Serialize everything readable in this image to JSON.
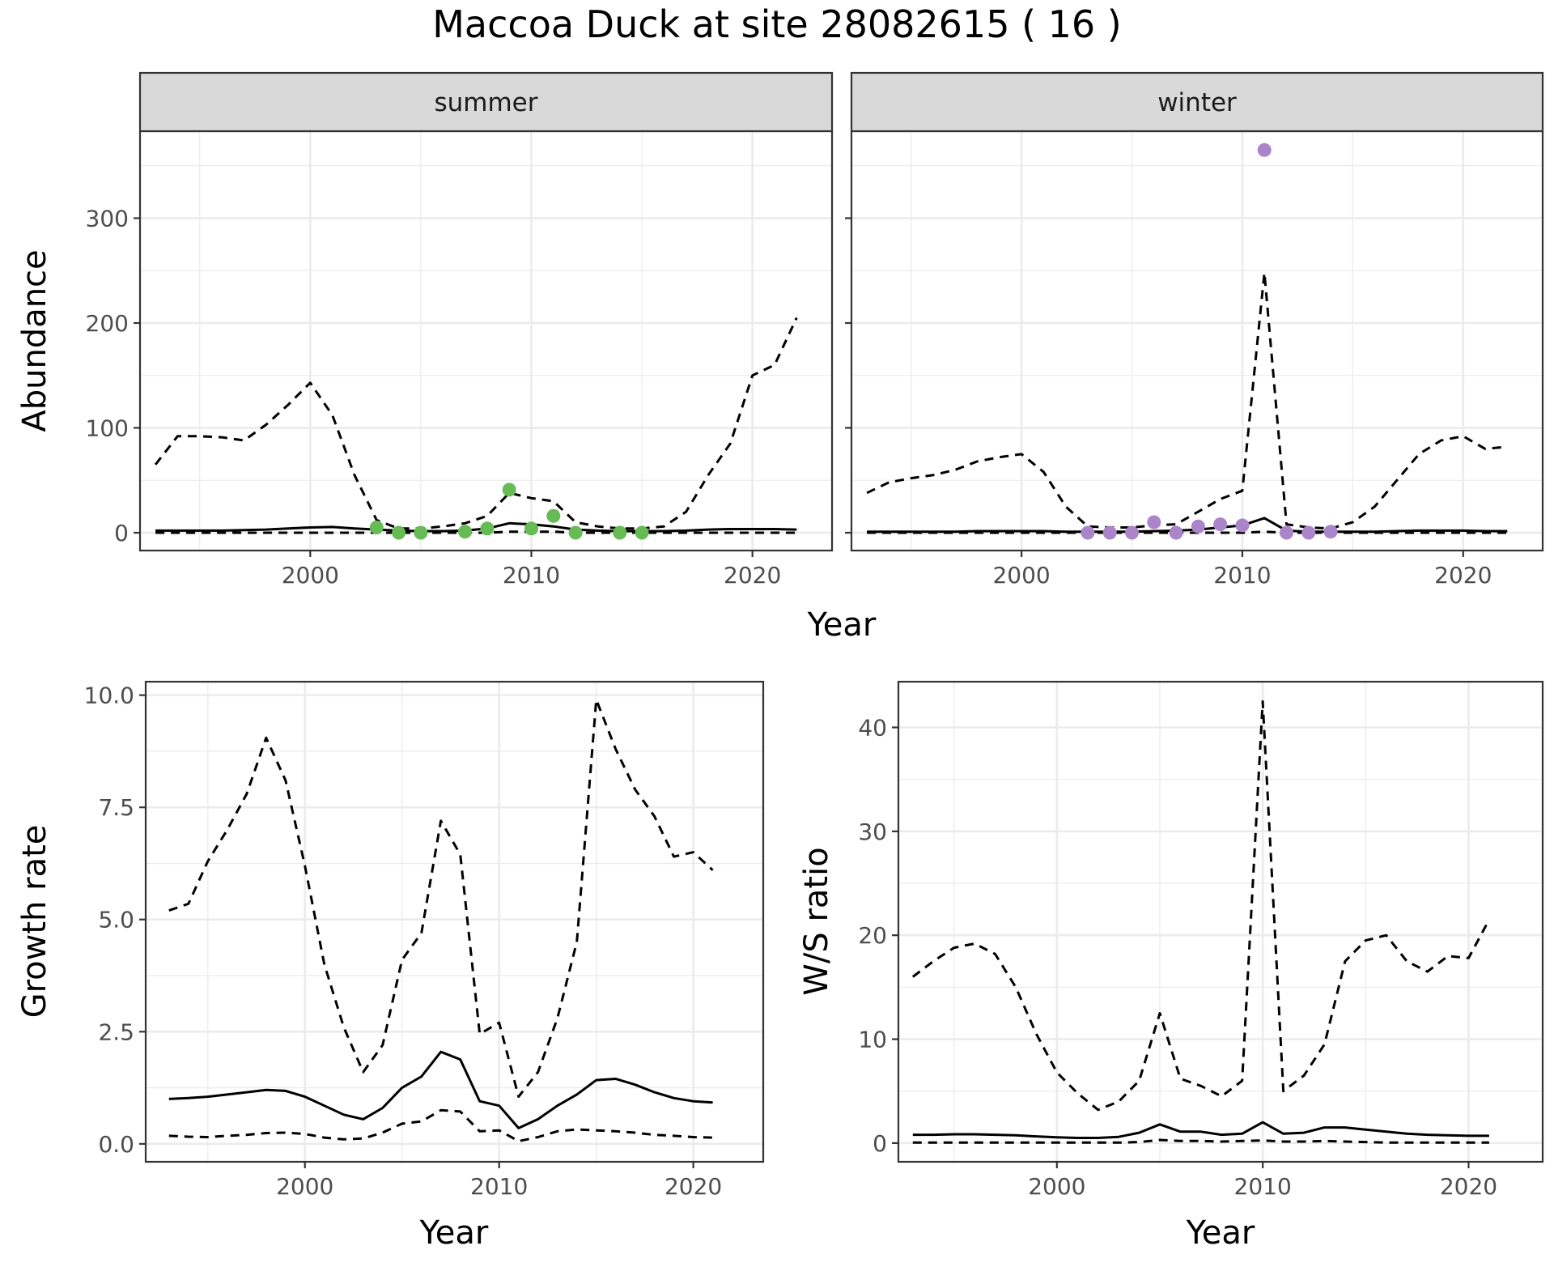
{
  "title": "Maccoa Duck at site 28082615 ( 16 )",
  "colors": {
    "summer_points": "#66bb55",
    "winter_points": "#ab85c9",
    "lines": "#000000",
    "strip": "#d9d9d9",
    "grid": "#ebebeb"
  },
  "chart_data": [
    {
      "type": "line",
      "panel": "summer",
      "strip_label": "summer",
      "xlabel": "Year",
      "ylabel": "Abundance",
      "xlim": [
        1992.3,
        2023.6
      ],
      "ylim": [
        -17,
        383
      ],
      "x_ticks": [
        2000,
        2010,
        2020
      ],
      "y_ticks": [
        0,
        100,
        200,
        300
      ],
      "grid": true,
      "series": [
        {
          "style": "solid",
          "x": [
            1993,
            1994,
            1995,
            1996,
            1997,
            1998,
            1999,
            2000,
            2001,
            2002,
            2003,
            2004,
            2005,
            2006,
            2007,
            2008,
            2009,
            2010,
            2011,
            2012,
            2013,
            2014,
            2015,
            2016,
            2017,
            2018,
            2019,
            2020,
            2021,
            2022
          ],
          "y": [
            2,
            2,
            2,
            2,
            2.5,
            3,
            4,
            5,
            5.5,
            4,
            3,
            2,
            1.5,
            1.5,
            2,
            4,
            9,
            8,
            6,
            3,
            2,
            1.5,
            1.5,
            1.5,
            2,
            3,
            3.5,
            3.5,
            3.5,
            3
          ]
        },
        {
          "style": "dashed",
          "x": [
            1993,
            1994,
            1995,
            1996,
            1997,
            1998,
            1999,
            2000,
            2001,
            2002,
            2003,
            2004,
            2005,
            2006,
            2007,
            2008,
            2009,
            2010,
            2011,
            2012,
            2013,
            2014,
            2015,
            2016,
            2017,
            2018,
            2019,
            2020,
            2021,
            2022
          ],
          "y": [
            0,
            0,
            0,
            0,
            0,
            0,
            0,
            0,
            0,
            0,
            0,
            0,
            0,
            0,
            0,
            0,
            1,
            1,
            1,
            0,
            0,
            0,
            0,
            0,
            0,
            0,
            0,
            0,
            0,
            0
          ]
        },
        {
          "style": "dashed",
          "x": [
            1993,
            1994,
            1995,
            1996,
            1997,
            1998,
            1999,
            2000,
            2001,
            2002,
            2003,
            2004,
            2005,
            2006,
            2007,
            2008,
            2009,
            2010,
            2011,
            2012,
            2013,
            2014,
            2015,
            2016,
            2017,
            2018,
            2019,
            2020,
            2021,
            2022
          ],
          "y": [
            65,
            92,
            92,
            91,
            88,
            103,
            122,
            143,
            112,
            55,
            12,
            4,
            4,
            6,
            9,
            16,
            38,
            33,
            30,
            10,
            6,
            4,
            4,
            6,
            20,
            55,
            85,
            150,
            160,
            205
          ]
        }
      ],
      "points": {
        "x": [
          2003,
          2004,
          2005,
          2007,
          2008,
          2009,
          2010,
          2011,
          2012,
          2014,
          2015
        ],
        "y": [
          5,
          0,
          0,
          1,
          4,
          41,
          4,
          16,
          0,
          0,
          0
        ]
      }
    },
    {
      "type": "line",
      "panel": "winter",
      "strip_label": "winter",
      "xlabel": "Year",
      "ylabel": "Abundance",
      "xlim": [
        1992.3,
        2023.6
      ],
      "ylim": [
        -17,
        383
      ],
      "x_ticks": [
        2000,
        2010,
        2020
      ],
      "y_ticks": [
        0,
        100,
        200,
        300
      ],
      "grid": true,
      "series": [
        {
          "style": "solid",
          "x": [
            1993,
            1994,
            1995,
            1996,
            1997,
            1998,
            1999,
            2000,
            2001,
            2002,
            2003,
            2004,
            2005,
            2006,
            2007,
            2008,
            2009,
            2010,
            2011,
            2012,
            2013,
            2014,
            2015,
            2016,
            2017,
            2018,
            2019,
            2020,
            2021,
            2022
          ],
          "y": [
            1,
            1,
            1,
            1,
            1,
            1.5,
            1.5,
            1.5,
            1.5,
            1,
            1,
            1,
            1,
            1.5,
            2,
            3,
            5,
            7,
            14,
            2,
            1,
            1,
            1,
            1,
            1.5,
            2,
            2,
            2,
            1.5,
            1.5
          ]
        },
        {
          "style": "dashed",
          "x": [
            1993,
            1994,
            1995,
            1996,
            1997,
            1998,
            1999,
            2000,
            2001,
            2002,
            2003,
            2004,
            2005,
            2006,
            2007,
            2008,
            2009,
            2010,
            2011,
            2012,
            2013,
            2014,
            2015,
            2016,
            2017,
            2018,
            2019,
            2020,
            2021,
            2022
          ],
          "y": [
            0,
            0,
            0,
            0,
            0,
            0,
            0,
            0,
            0,
            0,
            0,
            0,
            0,
            0,
            0,
            0,
            0,
            0,
            1,
            0,
            0,
            0,
            0,
            0,
            0,
            0,
            0,
            0,
            0,
            0
          ]
        },
        {
          "style": "dashed",
          "x": [
            1993,
            1994,
            1995,
            1996,
            1997,
            1998,
            1999,
            2000,
            2001,
            2002,
            2003,
            2004,
            2005,
            2006,
            2007,
            2008,
            2009,
            2010,
            2011,
            2012,
            2013,
            2014,
            2015,
            2016,
            2017,
            2018,
            2019,
            2020,
            2021,
            2022
          ],
          "y": [
            38,
            48,
            52,
            55,
            60,
            68,
            72,
            75,
            58,
            25,
            6,
            5,
            5,
            7,
            8,
            20,
            32,
            40,
            248,
            8,
            5,
            4,
            10,
            25,
            50,
            75,
            88,
            92,
            80,
            82
          ]
        }
      ],
      "points": {
        "x": [
          2003,
          2004,
          2005,
          2006,
          2007,
          2008,
          2009,
          2010,
          2011,
          2012,
          2013,
          2014
        ],
        "y": [
          0,
          0,
          0,
          10,
          0,
          6,
          8,
          7,
          365,
          0,
          0,
          1
        ]
      }
    },
    {
      "type": "line",
      "panel": "growth",
      "xlabel": "Year",
      "ylabel": "Growth rate",
      "xlim": [
        1991.8,
        2023.6
      ],
      "ylim": [
        -0.4,
        10.3
      ],
      "x_ticks": [
        2000,
        2010,
        2020
      ],
      "y_ticks": [
        "0.0",
        "2.5",
        "5.0",
        "7.5",
        "10.0"
      ],
      "grid": true,
      "series": [
        {
          "style": "solid",
          "x": [
            1993,
            1994,
            1995,
            1996,
            1997,
            1998,
            1999,
            2000,
            2001,
            2002,
            2003,
            2004,
            2005,
            2006,
            2007,
            2008,
            2009,
            2010,
            2011,
            2012,
            2013,
            2014,
            2015,
            2016,
            2017,
            2018,
            2019,
            2020,
            2021
          ],
          "y": [
            1.0,
            1.02,
            1.05,
            1.1,
            1.15,
            1.2,
            1.18,
            1.05,
            0.85,
            0.65,
            0.55,
            0.8,
            1.25,
            1.5,
            2.05,
            1.88,
            0.95,
            0.85,
            0.35,
            0.55,
            0.85,
            1.1,
            1.42,
            1.45,
            1.32,
            1.15,
            1.02,
            0.95,
            0.92
          ]
        },
        {
          "style": "dashed",
          "x": [
            1993,
            1994,
            1995,
            1996,
            1997,
            1998,
            1999,
            2000,
            2001,
            2002,
            2003,
            2004,
            2005,
            2006,
            2007,
            2008,
            2009,
            2010,
            2011,
            2012,
            2013,
            2014,
            2015,
            2016,
            2017,
            2018,
            2019,
            2020,
            2021
          ],
          "y": [
            0.18,
            0.16,
            0.15,
            0.18,
            0.2,
            0.24,
            0.25,
            0.22,
            0.14,
            0.1,
            0.12,
            0.25,
            0.45,
            0.5,
            0.75,
            0.72,
            0.28,
            0.3,
            0.06,
            0.15,
            0.28,
            0.32,
            0.3,
            0.28,
            0.25,
            0.2,
            0.18,
            0.15,
            0.14
          ]
        },
        {
          "style": "dashed",
          "x": [
            1993,
            1994,
            1995,
            1996,
            1997,
            1998,
            1999,
            2000,
            2001,
            2002,
            2003,
            2004,
            2005,
            2006,
            2007,
            2008,
            2009,
            2010,
            2011,
            2012,
            2013,
            2014,
            2015,
            2016,
            2017,
            2018,
            2019,
            2020,
            2021
          ],
          "y": [
            5.2,
            5.35,
            6.3,
            7.0,
            7.8,
            9.05,
            8.1,
            6.2,
            4.0,
            2.6,
            1.6,
            2.2,
            4.1,
            4.7,
            7.2,
            6.45,
            2.45,
            2.7,
            1.05,
            1.6,
            2.8,
            4.5,
            9.9,
            8.8,
            7.9,
            7.3,
            6.4,
            6.5,
            6.1
          ]
        }
      ]
    },
    {
      "type": "line",
      "panel": "ws_ratio",
      "xlabel": "Year",
      "ylabel": "W/S ratio",
      "xlim": [
        1992.3,
        2023.6
      ],
      "ylim": [
        -1.8,
        44.4
      ],
      "x_ticks": [
        2000,
        2010,
        2020
      ],
      "y_ticks": [
        0,
        10,
        20,
        30,
        40
      ],
      "grid": true,
      "series": [
        {
          "style": "solid",
          "x": [
            1993,
            1994,
            1995,
            1996,
            1997,
            1998,
            1999,
            2000,
            2001,
            2002,
            2003,
            2004,
            2005,
            2006,
            2007,
            2008,
            2009,
            2010,
            2011,
            2012,
            2013,
            2014,
            2015,
            2016,
            2017,
            2018,
            2019,
            2020,
            2021
          ],
          "y": [
            0.8,
            0.8,
            0.85,
            0.85,
            0.8,
            0.75,
            0.65,
            0.55,
            0.5,
            0.5,
            0.6,
            1.0,
            1.8,
            1.1,
            1.1,
            0.8,
            0.9,
            2.0,
            0.9,
            1.0,
            1.5,
            1.5,
            1.3,
            1.1,
            0.9,
            0.8,
            0.75,
            0.7,
            0.7
          ]
        },
        {
          "style": "dashed",
          "x": [
            1993,
            1994,
            1995,
            1996,
            1997,
            1998,
            1999,
            2000,
            2001,
            2002,
            2003,
            2004,
            2005,
            2006,
            2007,
            2008,
            2009,
            2010,
            2011,
            2012,
            2013,
            2014,
            2015,
            2016,
            2017,
            2018,
            2019,
            2020,
            2021
          ],
          "y": [
            0.05,
            0.05,
            0.05,
            0.05,
            0.05,
            0.05,
            0.05,
            0.05,
            0.05,
            0.05,
            0.05,
            0.1,
            0.3,
            0.2,
            0.2,
            0.15,
            0.2,
            0.25,
            0.15,
            0.15,
            0.2,
            0.15,
            0.1,
            0.05,
            0.05,
            0.05,
            0.05,
            0.05,
            0.05
          ]
        },
        {
          "style": "dashed",
          "x": [
            1993,
            1994,
            1995,
            1996,
            1997,
            1998,
            1999,
            2000,
            2001,
            2002,
            2003,
            2004,
            2005,
            2006,
            2007,
            2008,
            2009,
            2010,
            2011,
            2012,
            2013,
            2014,
            2015,
            2016,
            2017,
            2018,
            2019,
            2020,
            2021
          ],
          "y": [
            16,
            17.5,
            18.8,
            19.2,
            18.2,
            15.0,
            10.5,
            6.8,
            4.8,
            3.2,
            4.0,
            6.0,
            12.5,
            6.2,
            5.5,
            4.5,
            6.0,
            42.5,
            5.0,
            6.5,
            9.5,
            17.5,
            19.5,
            20.0,
            17.5,
            16.5,
            18.0,
            17.8,
            21.5
          ]
        }
      ]
    }
  ]
}
